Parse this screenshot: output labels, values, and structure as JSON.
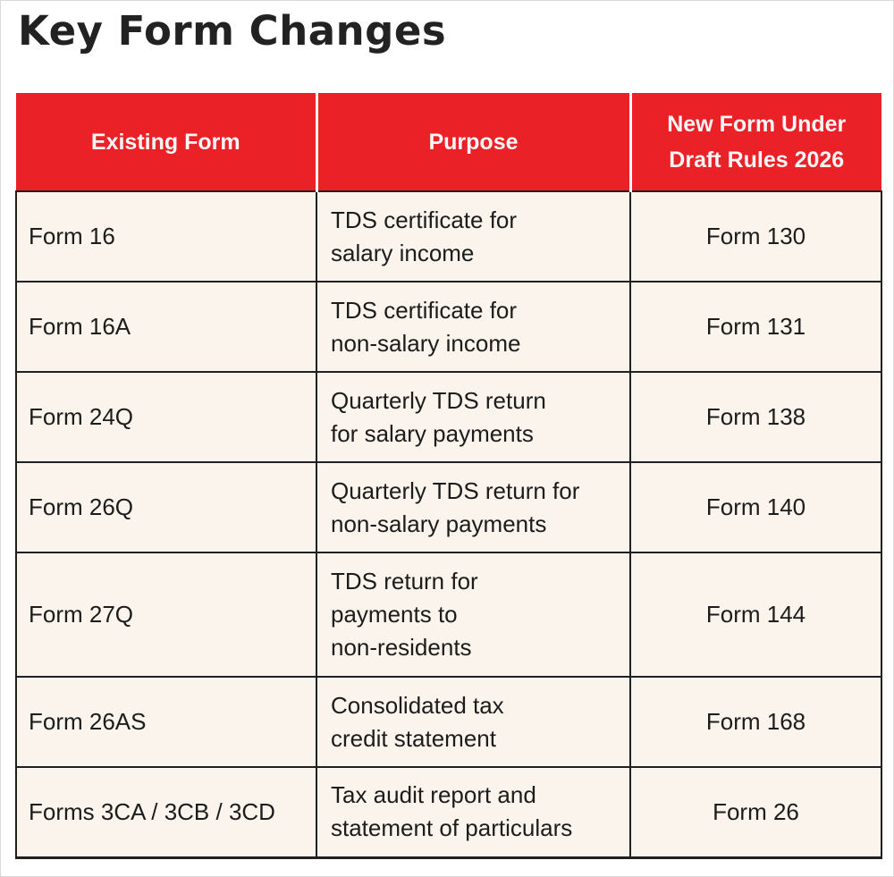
{
  "page": {
    "title": "Key Form Changes"
  },
  "table": {
    "headers": [
      "Existing Form",
      "Purpose",
      "New Form Under Draft Rules 2026"
    ],
    "rows": [
      {
        "existing_form": "Form 16",
        "purpose": "TDS certificate for\nsalary income",
        "new_form": "Form 130"
      },
      {
        "existing_form": "Form 16A",
        "purpose": "TDS certificate for\nnon-salary income",
        "new_form": "Form 131"
      },
      {
        "existing_form": "Form 24Q",
        "purpose": "Quarterly TDS return\nfor salary payments",
        "new_form": "Form 138"
      },
      {
        "existing_form": "Form 26Q",
        "purpose": "Quarterly TDS return for\nnon-salary payments",
        "new_form": "Form 140"
      },
      {
        "existing_form": "Form 27Q",
        "purpose": "TDS return for\npayments to\nnon-residents",
        "new_form": "Form 144"
      },
      {
        "existing_form": "Form 26AS",
        "purpose": "Consolidated tax\ncredit statement",
        "new_form": "Form 168"
      },
      {
        "existing_form": "Forms 3CA / 3CB / 3CD",
        "purpose": "Tax audit report and\nstatement of particulars",
        "new_form": "Form 26"
      }
    ]
  },
  "colors": {
    "header_background": "#EB2128",
    "header_text": "#FFFFFF",
    "row_background": "#FBF4EC",
    "border": "#202020",
    "title_text": "#222222"
  }
}
